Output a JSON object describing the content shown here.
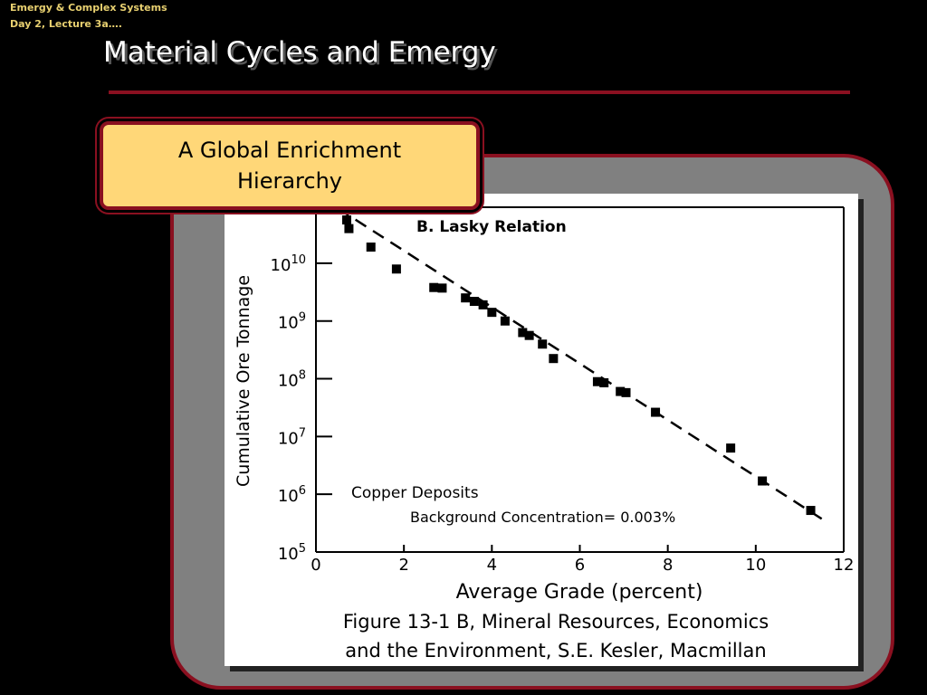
{
  "header": {
    "line1": "Emergy & Complex Systems",
    "line2": "Day 2, Lecture 3a…."
  },
  "slide": {
    "title": "Material Cycles and Emergy",
    "callout": "A Global Enrichment Hierarchy",
    "background_note": "Background Concentration= 0.003%"
  },
  "colors": {
    "background": "#000000",
    "accent_rule": "#8a1020",
    "callout_fill": "#ffd778",
    "frame_fill": "#808080",
    "header_text": "#e8d070"
  },
  "chart_data": {
    "type": "scatter",
    "title": "B. Lasky Relation",
    "annotation": "Copper Deposits",
    "xlabel": "Average Grade (percent)",
    "ylabel": "Cumulative Ore Tonnage",
    "xlim": [
      0,
      12
    ],
    "ylim": [
      5,
      11
    ],
    "y_scale": "log10 (tonnage)",
    "x_ticks": [
      "0",
      "2",
      "4",
      "6",
      "8",
      "10",
      "12"
    ],
    "y_ticks": [
      {
        "base": "10",
        "exp": "5"
      },
      {
        "base": "10",
        "exp": "6"
      },
      {
        "base": "10",
        "exp": "7"
      },
      {
        "base": "10",
        "exp": "8"
      },
      {
        "base": "10",
        "exp": "9"
      },
      {
        "base": "10",
        "exp": "10"
      }
    ],
    "caption_line1": "Figure 13-1 B, Mineral Resources, Economics",
    "caption_line2": "and the Environment, S.E. Kesler, Macmillan",
    "points": [
      {
        "x": 0.7,
        "y": 10.75
      },
      {
        "x": 0.75,
        "y": 10.6
      },
      {
        "x": 1.25,
        "y": 10.28
      },
      {
        "x": 1.83,
        "y": 9.9
      },
      {
        "x": 2.68,
        "y": 9.58
      },
      {
        "x": 2.87,
        "y": 9.57
      },
      {
        "x": 3.4,
        "y": 9.4
      },
      {
        "x": 3.6,
        "y": 9.34
      },
      {
        "x": 3.8,
        "y": 9.28
      },
      {
        "x": 4.0,
        "y": 9.15
      },
      {
        "x": 4.3,
        "y": 9.0
      },
      {
        "x": 4.7,
        "y": 8.8
      },
      {
        "x": 4.85,
        "y": 8.75
      },
      {
        "x": 5.15,
        "y": 8.6
      },
      {
        "x": 5.4,
        "y": 8.35
      },
      {
        "x": 6.4,
        "y": 7.95
      },
      {
        "x": 6.55,
        "y": 7.93
      },
      {
        "x": 6.92,
        "y": 7.78
      },
      {
        "x": 7.05,
        "y": 7.76
      },
      {
        "x": 7.72,
        "y": 7.42
      },
      {
        "x": 9.43,
        "y": 6.8
      },
      {
        "x": 10.15,
        "y": 6.23
      },
      {
        "x": 11.25,
        "y": 5.72
      }
    ],
    "trend_line": {
      "x1": 0.5,
      "y1": 10.95,
      "x2": 11.55,
      "y2": 5.55
    },
    "grid": false,
    "legend": "none"
  }
}
